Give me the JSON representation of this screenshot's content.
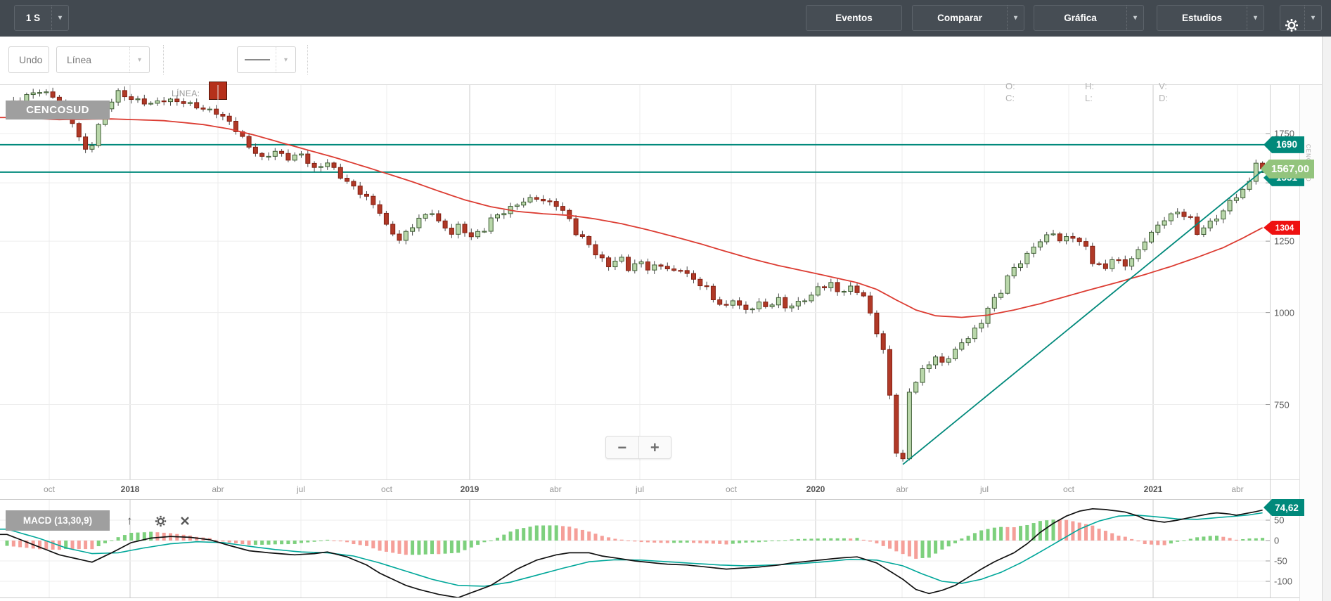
{
  "toolbar_top": {
    "period_label": "1 S",
    "buttons": [
      {
        "label": "Eventos",
        "has_caret": false
      },
      {
        "label": "Comparar",
        "has_caret": true
      },
      {
        "label": "Gráfica",
        "has_caret": true
      },
      {
        "label": "Estudios",
        "has_caret": true
      }
    ],
    "settings_icon": "gear-icon"
  },
  "toolbar_draw": {
    "undo_label": "Undo",
    "tool_label": "Línea",
    "line_label": "LÍNEA:",
    "swatch_color": "#b5301b",
    "ohlc_legend": {
      "o": "O:",
      "c": "C:",
      "h": "H:",
      "l": "L:",
      "v": "V:",
      "d": "D:"
    }
  },
  "symbol_badge": "CENCOSUD",
  "watermark": "CENCOSUD",
  "zoom_controls": {
    "out": "−",
    "in": "+"
  },
  "macd_panel": {
    "label": "MACD (13,30,9)",
    "icons": [
      "arrow-up-icon",
      "gear-icon",
      "close-icon"
    ],
    "badge_label": "74,62",
    "y_ticks": [
      "50",
      "0",
      "-50",
      "-100"
    ]
  },
  "price_axis": {
    "ticks": [
      "1750",
      "1500",
      "1250",
      "1000",
      "750"
    ],
    "tick_prices": [
      1750,
      1500,
      1250,
      1000,
      750
    ],
    "badges": [
      {
        "label": "1690",
        "type": "teal",
        "price": 1690
      },
      {
        "label": "1551",
        "type": "teal",
        "price": 1551
      },
      {
        "label": "1567,00",
        "type": "green",
        "price": 1567
      },
      {
        "label": "1304",
        "type": "red",
        "price": 1304
      }
    ]
  },
  "x_axis": {
    "ticks": [
      {
        "label": "oct",
        "year": false
      },
      {
        "label": "2018",
        "year": true
      },
      {
        "label": "abr",
        "year": false
      },
      {
        "label": "jul",
        "year": false
      },
      {
        "label": "oct",
        "year": false
      },
      {
        "label": "2019",
        "year": true
      },
      {
        "label": "abr",
        "year": false
      },
      {
        "label": "jul",
        "year": false
      },
      {
        "label": "oct",
        "year": false
      },
      {
        "label": "2020",
        "year": true
      },
      {
        "label": "abr",
        "year": false
      },
      {
        "label": "jul",
        "year": false
      },
      {
        "label": "oct",
        "year": false
      },
      {
        "label": "2021",
        "year": true
      },
      {
        "label": "abr",
        "year": false
      }
    ]
  },
  "colors": {
    "toolbar_dark": "#424950",
    "accent_teal": "#00897b",
    "signal_teal": "#00a79a",
    "ma_red": "#dc3c32",
    "price_badge_green": "#93c47d",
    "alert_badge_red": "#ee1111",
    "candle_up_fill": "#b9d7aa",
    "candle_up_stroke": "#3d5c33",
    "candle_down_fill": "#b03927",
    "candle_down_stroke": "#841f12",
    "wick": "#4a4a4a",
    "hist_up": "#7dd07d",
    "hist_down": "#f59f99",
    "macd_line": "#111111",
    "grid": "#ededed",
    "grid_dark": "#cbcbcb",
    "badge_gray": "#9f9f9f"
  },
  "chart_data": {
    "type": "candlestick",
    "title": "CENCOSUD",
    "interval": "1 S",
    "y_scale": "log",
    "y_ticks": [
      1750,
      1500,
      1250,
      1000,
      750
    ],
    "x_tick_labels": [
      "oct",
      "2018",
      "abr",
      "jul",
      "oct",
      "2019",
      "abr",
      "jul",
      "oct",
      "2020",
      "abr",
      "jul",
      "oct",
      "2021",
      "abr"
    ],
    "last_price": "1567,00",
    "ma_last_value": 1304,
    "horizontal_lines": [
      1690,
      1551
    ],
    "trendline": {
      "from": [
        137,
        622
      ],
      "to": [
        194,
        1611
      ]
    },
    "n_weeks": 193,
    "close_anchors": [
      [
        0,
        1910
      ],
      [
        3,
        1970
      ],
      [
        5,
        2000
      ],
      [
        7,
        1965
      ],
      [
        9,
        1900
      ],
      [
        11,
        1730
      ],
      [
        12,
        1660
      ],
      [
        13,
        1695
      ],
      [
        15,
        1890
      ],
      [
        17,
        1990
      ],
      [
        19,
        1950
      ],
      [
        22,
        1920
      ],
      [
        24,
        1945
      ],
      [
        27,
        1930
      ],
      [
        30,
        1890
      ],
      [
        32,
        1870
      ],
      [
        34,
        1815
      ],
      [
        37,
        1680
      ],
      [
        39,
        1620
      ],
      [
        41,
        1655
      ],
      [
        43,
        1620
      ],
      [
        45,
        1640
      ],
      [
        47,
        1565
      ],
      [
        49,
        1600
      ],
      [
        51,
        1530
      ],
      [
        53,
        1480
      ],
      [
        55,
        1432
      ],
      [
        57,
        1370
      ],
      [
        58,
        1310
      ],
      [
        60,
        1255
      ],
      [
        61,
        1282
      ],
      [
        63,
        1340
      ],
      [
        65,
        1370
      ],
      [
        66,
        1325
      ],
      [
        68,
        1282
      ],
      [
        69,
        1310
      ],
      [
        71,
        1268
      ],
      [
        73,
        1297
      ],
      [
        74,
        1340
      ],
      [
        76,
        1370
      ],
      [
        78,
        1402
      ],
      [
        79,
        1417
      ],
      [
        81,
        1432
      ],
      [
        82,
        1417
      ],
      [
        84,
        1402
      ],
      [
        86,
        1340
      ],
      [
        87,
        1282
      ],
      [
        89,
        1240
      ],
      [
        90,
        1200
      ],
      [
        92,
        1160
      ],
      [
        94,
        1185
      ],
      [
        95,
        1147
      ],
      [
        97,
        1172
      ],
      [
        98,
        1147
      ],
      [
        100,
        1160
      ],
      [
        102,
        1135
      ],
      [
        103,
        1147
      ],
      [
        105,
        1107
      ],
      [
        107,
        1080
      ],
      [
        108,
        1042
      ],
      [
        110,
        1017
      ],
      [
        111,
        1042
      ],
      [
        113,
        1005
      ],
      [
        115,
        1030
      ],
      [
        116,
        1017
      ],
      [
        118,
        1042
      ],
      [
        119,
        1017
      ],
      [
        121,
        1030
      ],
      [
        123,
        1055
      ],
      [
        124,
        1080
      ],
      [
        126,
        1094
      ],
      [
        127,
        1067
      ],
      [
        129,
        1080
      ],
      [
        131,
        1055
      ],
      [
        132,
        993
      ],
      [
        134,
        889
      ],
      [
        135,
        770
      ],
      [
        136,
        648
      ],
      [
        137,
        630
      ],
      [
        138,
        780
      ],
      [
        140,
        834
      ],
      [
        142,
        871
      ],
      [
        143,
        852
      ],
      [
        145,
        889
      ],
      [
        147,
        927
      ],
      [
        149,
        968
      ],
      [
        150,
        1017
      ],
      [
        152,
        1067
      ],
      [
        153,
        1121
      ],
      [
        155,
        1172
      ],
      [
        157,
        1226
      ],
      [
        158,
        1254
      ],
      [
        160,
        1282
      ],
      [
        161,
        1254
      ],
      [
        163,
        1268
      ],
      [
        165,
        1226
      ],
      [
        166,
        1172
      ],
      [
        168,
        1147
      ],
      [
        169,
        1185
      ],
      [
        171,
        1160
      ],
      [
        173,
        1211
      ],
      [
        174,
        1254
      ],
      [
        176,
        1311
      ],
      [
        177,
        1340
      ],
      [
        179,
        1370
      ],
      [
        181,
        1340
      ],
      [
        182,
        1282
      ],
      [
        184,
        1325
      ],
      [
        186,
        1370
      ],
      [
        187,
        1417
      ],
      [
        189,
        1462
      ],
      [
        190,
        1510
      ],
      [
        191,
        1600
      ],
      [
        192,
        1567
      ]
    ],
    "ma_anchors": [
      [
        0,
        1840
      ],
      [
        8,
        1828
      ],
      [
        16,
        1832
      ],
      [
        24,
        1822
      ],
      [
        30,
        1800
      ],
      [
        34,
        1775
      ],
      [
        38,
        1740
      ],
      [
        42,
        1700
      ],
      [
        46,
        1662
      ],
      [
        50,
        1625
      ],
      [
        54,
        1585
      ],
      [
        58,
        1545
      ],
      [
        62,
        1505
      ],
      [
        66,
        1462
      ],
      [
        70,
        1422
      ],
      [
        74,
        1392
      ],
      [
        78,
        1372
      ],
      [
        82,
        1362
      ],
      [
        86,
        1355
      ],
      [
        90,
        1340
      ],
      [
        94,
        1320
      ],
      [
        98,
        1295
      ],
      [
        102,
        1268
      ],
      [
        106,
        1240
      ],
      [
        110,
        1210
      ],
      [
        114,
        1182
      ],
      [
        118,
        1158
      ],
      [
        122,
        1138
      ],
      [
        126,
        1118
      ],
      [
        130,
        1098
      ],
      [
        133,
        1075
      ],
      [
        136,
        1040
      ],
      [
        139,
        1008
      ],
      [
        142,
        990
      ],
      [
        146,
        985
      ],
      [
        150,
        992
      ],
      [
        154,
        1008
      ],
      [
        158,
        1028
      ],
      [
        162,
        1052
      ],
      [
        166,
        1076
      ],
      [
        170,
        1100
      ],
      [
        174,
        1126
      ],
      [
        178,
        1155
      ],
      [
        182,
        1188
      ],
      [
        186,
        1225
      ],
      [
        189,
        1262
      ],
      [
        192,
        1304
      ]
    ],
    "macd": {
      "params": "13,30,9",
      "last": "74,62",
      "y_ticks": [
        50,
        0,
        -50,
        -100
      ],
      "macd_anchors": [
        [
          0,
          15
        ],
        [
          4,
          -10
        ],
        [
          8,
          -35
        ],
        [
          13,
          -53
        ],
        [
          16,
          -30
        ],
        [
          19,
          -5
        ],
        [
          22,
          6
        ],
        [
          25,
          10
        ],
        [
          28,
          8
        ],
        [
          31,
          2
        ],
        [
          34,
          -12
        ],
        [
          37,
          -25
        ],
        [
          40,
          -30
        ],
        [
          44,
          -35
        ],
        [
          47,
          -32
        ],
        [
          49,
          -28
        ],
        [
          52,
          -40
        ],
        [
          55,
          -60
        ],
        [
          57,
          -80
        ],
        [
          59,
          -95
        ],
        [
          61,
          -110
        ],
        [
          63,
          -120
        ],
        [
          66,
          -132
        ],
        [
          69,
          -140
        ],
        [
          71,
          -128
        ],
        [
          74,
          -110
        ],
        [
          76,
          -90
        ],
        [
          78,
          -70
        ],
        [
          81,
          -48
        ],
        [
          84,
          -35
        ],
        [
          86,
          -30
        ],
        [
          89,
          -30
        ],
        [
          91,
          -38
        ],
        [
          94,
          -45
        ],
        [
          96,
          -50
        ],
        [
          99,
          -55
        ],
        [
          101,
          -58
        ],
        [
          104,
          -60
        ],
        [
          107,
          -65
        ],
        [
          110,
          -70
        ],
        [
          112,
          -68
        ],
        [
          115,
          -65
        ],
        [
          118,
          -60
        ],
        [
          120,
          -55
        ],
        [
          123,
          -50
        ],
        [
          126,
          -45
        ],
        [
          128,
          -42
        ],
        [
          130,
          -40
        ],
        [
          133,
          -55
        ],
        [
          135,
          -75
        ],
        [
          137,
          -95
        ],
        [
          139,
          -120
        ],
        [
          141,
          -130
        ],
        [
          143,
          -122
        ],
        [
          145,
          -110
        ],
        [
          147,
          -90
        ],
        [
          149,
          -70
        ],
        [
          151,
          -52
        ],
        [
          154,
          -30
        ],
        [
          156,
          -8
        ],
        [
          158,
          20
        ],
        [
          160,
          42
        ],
        [
          162,
          60
        ],
        [
          164,
          72
        ],
        [
          166,
          78
        ],
        [
          168,
          76
        ],
        [
          171,
          70
        ],
        [
          173,
          60
        ],
        [
          174,
          52
        ],
        [
          176,
          47
        ],
        [
          177,
          45
        ],
        [
          179,
          50
        ],
        [
          182,
          60
        ],
        [
          184,
          66
        ],
        [
          185,
          68
        ],
        [
          187,
          65
        ],
        [
          188,
          62
        ],
        [
          189,
          65
        ],
        [
          190,
          68
        ],
        [
          191,
          71
        ],
        [
          192,
          74.62
        ]
      ],
      "signal_anchors": [
        [
          0,
          28
        ],
        [
          5,
          5
        ],
        [
          9,
          -18
        ],
        [
          13,
          -32
        ],
        [
          17,
          -30
        ],
        [
          21,
          -18
        ],
        [
          25,
          -8
        ],
        [
          29,
          -3
        ],
        [
          33,
          -5
        ],
        [
          37,
          -14
        ],
        [
          41,
          -22
        ],
        [
          45,
          -28
        ],
        [
          49,
          -30
        ],
        [
          53,
          -38
        ],
        [
          57,
          -55
        ],
        [
          61,
          -75
        ],
        [
          65,
          -95
        ],
        [
          69,
          -110
        ],
        [
          73,
          -112
        ],
        [
          77,
          -102
        ],
        [
          81,
          -85
        ],
        [
          85,
          -68
        ],
        [
          89,
          -52
        ],
        [
          93,
          -47
        ],
        [
          97,
          -48
        ],
        [
          101,
          -52
        ],
        [
          105,
          -56
        ],
        [
          109,
          -60
        ],
        [
          113,
          -62
        ],
        [
          117,
          -60
        ],
        [
          121,
          -57
        ],
        [
          125,
          -52
        ],
        [
          129,
          -46
        ],
        [
          133,
          -48
        ],
        [
          137,
          -62
        ],
        [
          140,
          -82
        ],
        [
          143,
          -100
        ],
        [
          146,
          -105
        ],
        [
          149,
          -95
        ],
        [
          152,
          -78
        ],
        [
          155,
          -55
        ],
        [
          158,
          -28
        ],
        [
          161,
          0
        ],
        [
          164,
          28
        ],
        [
          167,
          48
        ],
        [
          170,
          60
        ],
        [
          173,
          62
        ],
        [
          176,
          58
        ],
        [
          179,
          53
        ],
        [
          182,
          52
        ],
        [
          185,
          56
        ],
        [
          188,
          60
        ],
        [
          190,
          63
        ],
        [
          192,
          68
        ]
      ]
    }
  }
}
